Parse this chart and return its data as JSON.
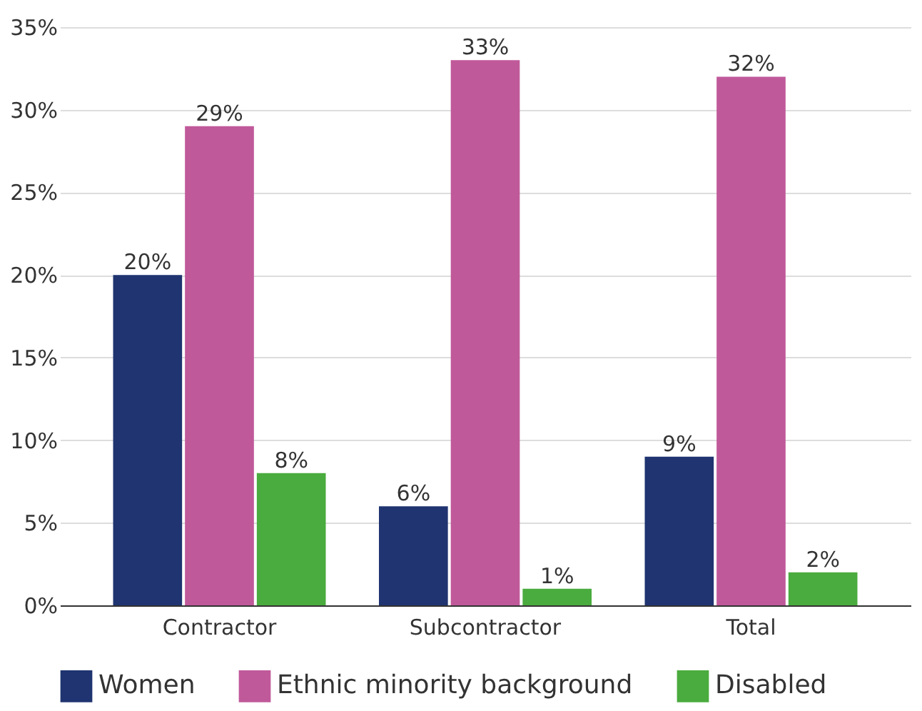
{
  "chart_data": {
    "type": "bar",
    "categories": [
      "Contractor",
      "Subcontractor",
      "Total"
    ],
    "series": [
      {
        "name": "Women",
        "color": "#1f3470",
        "values": [
          20,
          6,
          9
        ],
        "value_labels": [
          "20%",
          "6%",
          "9%"
        ]
      },
      {
        "name": "Ethnic minority background",
        "color": "#c0599a",
        "values": [
          29,
          33,
          32
        ],
        "value_labels": [
          "29%",
          "33%",
          "32%"
        ]
      },
      {
        "name": "Disabled",
        "color": "#4aab3e",
        "values": [
          8,
          1,
          2
        ],
        "value_labels": [
          "8%",
          "1%",
          "2%"
        ]
      }
    ],
    "ylim": [
      0,
      35
    ],
    "yticks": [
      {
        "value": 0,
        "label": "0%"
      },
      {
        "value": 5,
        "label": "5%"
      },
      {
        "value": 10,
        "label": "10%"
      },
      {
        "value": 15,
        "label": "15%"
      },
      {
        "value": 20,
        "label": "20%"
      },
      {
        "value": 25,
        "label": "25%"
      },
      {
        "value": 30,
        "label": "30%"
      },
      {
        "value": 35,
        "label": "35%"
      }
    ],
    "grid": "y",
    "legend": "bottom"
  }
}
